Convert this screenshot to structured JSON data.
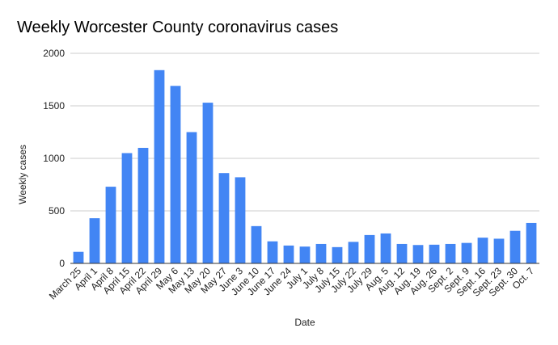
{
  "chart_data": {
    "type": "bar",
    "title": "Weekly Worcester County coronavirus cases",
    "xlabel": "Date",
    "ylabel": "Weekly cases",
    "ylim": [
      0,
      2000
    ],
    "yticks": [
      0,
      500,
      1000,
      1500,
      2000
    ],
    "grid": true,
    "legend": "none",
    "bar_color": "#4285f4",
    "categories": [
      "March 25",
      "April 1",
      "April 8",
      "April 15",
      "April 22",
      "April 29",
      "May 6",
      "May 13",
      "May 20",
      "May 27",
      "June 3",
      "June 10",
      "June 17",
      "June 24",
      "July 1",
      "July 8",
      "July 15",
      "July 22",
      "July 29",
      "Aug. 5",
      "Aug. 12",
      "Aug. 19",
      "Aug. 26",
      "Sept. 2",
      "Sept. 9",
      "Sept. 16",
      "Sept. 23",
      "Sept. 30",
      "Oct. 7"
    ],
    "values": [
      110,
      430,
      730,
      1050,
      1100,
      1840,
      1690,
      1250,
      1530,
      860,
      820,
      355,
      210,
      170,
      160,
      185,
      155,
      205,
      270,
      285,
      185,
      175,
      178,
      185,
      195,
      245,
      235,
      310,
      385
    ]
  }
}
